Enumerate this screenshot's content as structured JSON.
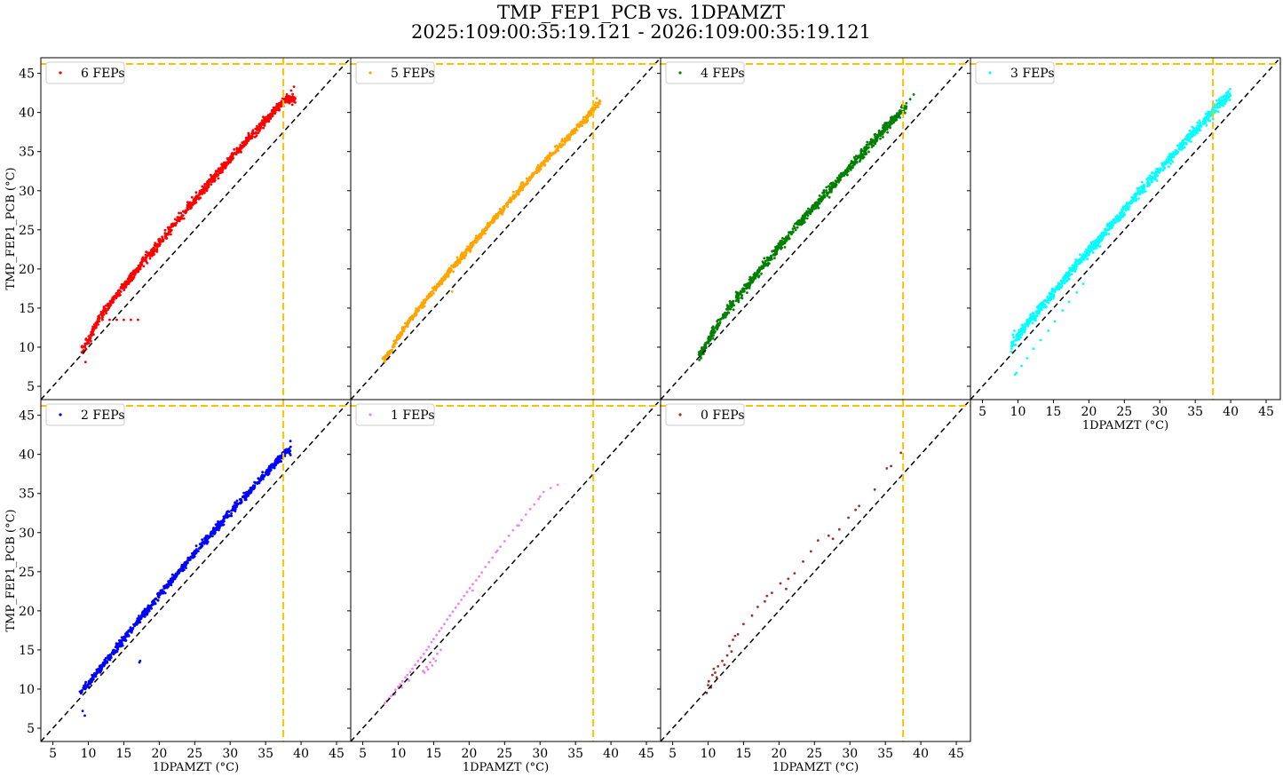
{
  "title": {
    "line1": "TMP_FEP1_PCB vs. 1DPAMZT",
    "line2": "2025:109:00:35:19.121 - 2026:109:00:35:19.121"
  },
  "colors": {
    "reference_line": "#000000",
    "limit_line": "#ffc000"
  },
  "chart_data": [
    {
      "type": "scatter",
      "legend": "6 FEPs",
      "color": "#ff0000",
      "xlabel": "",
      "ylabel": "TMP_FEP1_PCB (°C)",
      "xlim": [
        3.3,
        47
      ],
      "ylim": [
        3.3,
        47
      ],
      "xticks": [
        5,
        10,
        15,
        20,
        25,
        30,
        35,
        40,
        45
      ],
      "yticks": [
        5,
        10,
        15,
        20,
        25,
        30,
        35,
        40,
        45
      ],
      "show_xticklabels": false,
      "show_yticklabels": true,
      "legend_position": "upper left",
      "reference_line": "y = x",
      "limit_lines": {
        "x": 37.5,
        "y": 46.2
      },
      "trend": [
        [
          9.3,
          9.6
        ],
        [
          10.2,
          11
        ],
        [
          11,
          12.8
        ],
        [
          12,
          14.3
        ],
        [
          14,
          16.7
        ],
        [
          16,
          18.9
        ],
        [
          18,
          21.2
        ],
        [
          20,
          23.3
        ],
        [
          22,
          25.5
        ],
        [
          24,
          27.8
        ],
        [
          26,
          29.9
        ],
        [
          28,
          32
        ],
        [
          30,
          34
        ],
        [
          32,
          36
        ],
        [
          34,
          38
        ],
        [
          36,
          40
        ],
        [
          37.8,
          41.6
        ]
      ],
      "spread": 1.2,
      "extra_points": [
        [
          12,
          13.5
        ],
        [
          13,
          13.5
        ],
        [
          14,
          13.5
        ],
        [
          15,
          13.5
        ],
        [
          16,
          13.5
        ],
        [
          17,
          13.5
        ],
        [
          38,
          42.3
        ],
        [
          38.6,
          42.8
        ],
        [
          39,
          43.3
        ],
        [
          9.6,
          8.1
        ],
        [
          37.8,
          41.3
        ]
      ],
      "range": [
        9,
        39.2
      ]
    },
    {
      "type": "scatter",
      "legend": "5 FEPs",
      "color": "#ffa500",
      "xlabel": "",
      "ylabel": "",
      "xlim": [
        3.3,
        47
      ],
      "ylim": [
        3.3,
        47
      ],
      "xticks": [
        5,
        10,
        15,
        20,
        25,
        30,
        35,
        40,
        45
      ],
      "yticks": [
        5,
        10,
        15,
        20,
        25,
        30,
        35,
        40,
        45
      ],
      "show_xticklabels": false,
      "show_yticklabels": false,
      "legend_position": "upper left",
      "reference_line": "y = x",
      "limit_lines": {
        "x": 37.5,
        "y": 46.2
      },
      "trend": [
        [
          8,
          8.5
        ],
        [
          9,
          9.6
        ],
        [
          10,
          11.2
        ],
        [
          11,
          12.7
        ],
        [
          13,
          15
        ],
        [
          15,
          17.3
        ],
        [
          17,
          19.4
        ],
        [
          19,
          21.6
        ],
        [
          21,
          23.7
        ],
        [
          23,
          25.8
        ],
        [
          25,
          27.9
        ],
        [
          27,
          30
        ],
        [
          29,
          32
        ],
        [
          31,
          34
        ],
        [
          33,
          35.9
        ],
        [
          35,
          37.8
        ],
        [
          37,
          39.8
        ],
        [
          38.4,
          41.2
        ]
      ],
      "spread": 0.9,
      "extra_points": [
        [
          17.6,
          17.1
        ],
        [
          38,
          41.8
        ],
        [
          38.4,
          41.5
        ]
      ],
      "range": [
        7.8,
        38.5
      ]
    },
    {
      "type": "scatter",
      "legend": "4 FEPs",
      "color": "#008000",
      "xlabel": "",
      "ylabel": "",
      "xlim": [
        3.3,
        47
      ],
      "ylim": [
        3.3,
        47
      ],
      "xticks": [
        5,
        10,
        15,
        20,
        25,
        30,
        35,
        40,
        45
      ],
      "yticks": [
        5,
        10,
        15,
        20,
        25,
        30,
        35,
        40,
        45
      ],
      "show_xticklabels": false,
      "show_yticklabels": false,
      "legend_position": "upper left",
      "reference_line": "y = x",
      "limit_lines": {
        "x": 37.5,
        "y": 46.2
      },
      "trend": [
        [
          9,
          9.2
        ],
        [
          10,
          10.8
        ],
        [
          11,
          12.4
        ],
        [
          12,
          13.8
        ],
        [
          14,
          16.2
        ],
        [
          16,
          18.4
        ],
        [
          18,
          20.6
        ],
        [
          20,
          22.8
        ],
        [
          22,
          24.9
        ],
        [
          24,
          27
        ],
        [
          26,
          29
        ],
        [
          28,
          31
        ],
        [
          30,
          33
        ],
        [
          32,
          35
        ],
        [
          34,
          37
        ],
        [
          36,
          39
        ],
        [
          37.8,
          40.7
        ]
      ],
      "spread": 1.3,
      "extra_points": [
        [
          38.5,
          41.7
        ],
        [
          39,
          42.3
        ],
        [
          9,
          8.6
        ],
        [
          37.6,
          40.2
        ]
      ],
      "range": [
        8.7,
        38
      ]
    },
    {
      "type": "scatter",
      "legend": "3 FEPs",
      "color": "#00ffff",
      "xlabel": "1DPAMZT (°C)",
      "ylabel": "",
      "xlim": [
        3.3,
        47
      ],
      "ylim": [
        3.3,
        47
      ],
      "xticks": [
        5,
        10,
        15,
        20,
        25,
        30,
        35,
        40,
        45
      ],
      "yticks": [
        5,
        10,
        15,
        20,
        25,
        30,
        35,
        40,
        45
      ],
      "show_xticklabels": true,
      "show_yticklabels": false,
      "legend_position": "upper left",
      "reference_line": "y = x",
      "limit_lines": {
        "x": 37.5,
        "y": 46.2
      },
      "trend": [
        [
          9,
          10
        ],
        [
          10,
          11.5
        ],
        [
          11,
          12.6
        ],
        [
          12,
          13.7
        ],
        [
          14,
          15.9
        ],
        [
          16,
          18.1
        ],
        [
          18,
          20.2
        ],
        [
          20,
          22.3
        ],
        [
          22,
          24.4
        ],
        [
          24,
          26.5
        ],
        [
          26,
          28.6
        ],
        [
          28,
          30.7
        ],
        [
          30,
          32.7
        ],
        [
          32,
          34.7
        ],
        [
          34,
          36.7
        ],
        [
          36,
          38.6
        ],
        [
          38,
          40.6
        ],
        [
          40,
          42.5
        ]
      ],
      "spread": 1.4,
      "extra_points": [
        [
          9.8,
          6.7
        ],
        [
          10.5,
          7.6
        ],
        [
          11.3,
          8.6
        ],
        [
          12.2,
          9.8
        ],
        [
          13.2,
          10.9
        ],
        [
          14.3,
          12.1
        ],
        [
          15.2,
          13.3
        ],
        [
          16.3,
          14.7
        ],
        [
          17.2,
          15.8
        ],
        [
          18.3,
          17
        ],
        [
          19.2,
          18.1
        ],
        [
          9.3,
          11.6
        ],
        [
          9.5,
          12.1
        ],
        [
          9.6,
          6.5
        ]
      ],
      "range": [
        9,
        40
      ]
    },
    {
      "type": "scatter",
      "legend": "2 FEPs",
      "color": "#0000ff",
      "xlabel": "1DPAMZT (°C)",
      "ylabel": "TMP_FEP1_PCB (°C)",
      "xlim": [
        3.3,
        47
      ],
      "ylim": [
        3.3,
        47
      ],
      "xticks": [
        5,
        10,
        15,
        20,
        25,
        30,
        35,
        40,
        45
      ],
      "yticks": [
        5,
        10,
        15,
        20,
        25,
        30,
        35,
        40,
        45
      ],
      "show_xticklabels": true,
      "show_yticklabels": true,
      "legend_position": "upper left",
      "reference_line": "y = x",
      "limit_lines": {
        "x": 37.5,
        "y": 46.2
      },
      "trend": [
        [
          9,
          9.7
        ],
        [
          10,
          10.6
        ],
        [
          11,
          11.8
        ],
        [
          12,
          13
        ],
        [
          14,
          15.3
        ],
        [
          16,
          17.5
        ],
        [
          18,
          19.8
        ],
        [
          20,
          22
        ],
        [
          22,
          24.2
        ],
        [
          24,
          26.3
        ],
        [
          26,
          28.4
        ],
        [
          28,
          30.5
        ],
        [
          30,
          32.5
        ],
        [
          32,
          34.5
        ],
        [
          34,
          36.5
        ],
        [
          36,
          38.5
        ],
        [
          37.8,
          40.4
        ]
      ],
      "spread": 1.0,
      "extra_points": [
        [
          9.2,
          7.2
        ],
        [
          9.5,
          6.6
        ],
        [
          17.2,
          13.4
        ],
        [
          17.3,
          13.6
        ],
        [
          38.5,
          41.7
        ],
        [
          37.2,
          39.1
        ]
      ],
      "range": [
        8.8,
        38.6
      ]
    },
    {
      "type": "scatter",
      "legend": "1 FEPs",
      "color": "#ee82ee",
      "xlabel": "1DPAMZT (°C)",
      "ylabel": "",
      "xlim": [
        3.3,
        47
      ],
      "ylim": [
        3.3,
        47
      ],
      "xticks": [
        5,
        10,
        15,
        20,
        25,
        30,
        35,
        40,
        45
      ],
      "yticks": [
        5,
        10,
        15,
        20,
        25,
        30,
        35,
        40,
        45
      ],
      "show_xticklabels": true,
      "show_yticklabels": false,
      "legend_position": "upper left",
      "reference_line": "y = x",
      "limit_lines": {
        "x": 37.5,
        "y": 46.2
      },
      "points": [
        [
          8.1,
          8.2
        ],
        [
          8.4,
          8.5
        ],
        [
          8.7,
          8.8
        ],
        [
          9,
          9.1
        ],
        [
          9.3,
          9.4
        ],
        [
          9.6,
          9.9
        ],
        [
          10,
          10.3
        ],
        [
          10.3,
          10.6
        ],
        [
          10.6,
          11
        ],
        [
          11,
          11.5
        ],
        [
          11.3,
          11.8
        ],
        [
          11.7,
          12.2
        ],
        [
          12,
          12.6
        ],
        [
          12.4,
          13.1
        ],
        [
          12.8,
          13.6
        ],
        [
          13.2,
          14
        ],
        [
          13.6,
          14.5
        ],
        [
          14,
          15
        ],
        [
          14.3,
          15.4
        ],
        [
          14.7,
          16
        ],
        [
          15,
          16.4
        ],
        [
          15.4,
          16.9
        ],
        [
          15.8,
          17.4
        ],
        [
          16.1,
          17.8
        ],
        [
          16.5,
          18.3
        ],
        [
          16.9,
          18.9
        ],
        [
          17.3,
          19.4
        ],
        [
          17.7,
          19.9
        ],
        [
          18.1,
          20.4
        ],
        [
          18.5,
          20.9
        ],
        [
          18.9,
          21.4
        ],
        [
          19.3,
          21.9
        ],
        [
          19.7,
          22.4
        ],
        [
          20.1,
          22.9
        ],
        [
          20.5,
          23.4
        ],
        [
          21,
          23.9
        ],
        [
          21.4,
          24.4
        ],
        [
          21.8,
          24.9
        ],
        [
          22.3,
          25.6
        ],
        [
          22.8,
          26.2
        ],
        [
          23.3,
          26.8
        ],
        [
          23.8,
          27.5
        ],
        [
          24.4,
          28.2
        ],
        [
          25,
          28.9
        ],
        [
          25.6,
          29.6
        ],
        [
          26.2,
          30.3
        ],
        [
          26.8,
          30.9
        ],
        [
          27.4,
          31.6
        ],
        [
          28,
          32.3
        ],
        [
          28.6,
          33
        ],
        [
          29.2,
          33.6
        ],
        [
          29.8,
          34.3
        ],
        [
          30.5,
          35.2
        ],
        [
          31.5,
          35.7
        ],
        [
          32.5,
          36.1
        ],
        [
          13.5,
          12.3
        ],
        [
          14,
          12.8
        ],
        [
          14.5,
          13.4
        ],
        [
          15,
          13.9
        ],
        [
          15.5,
          14.5
        ],
        [
          16,
          15
        ],
        [
          13.7,
          12.1
        ],
        [
          14.2,
          12.5
        ],
        [
          14.8,
          13
        ],
        [
          15.3,
          13.6
        ],
        [
          9.5,
          9.3
        ],
        [
          10.5,
          10.2
        ],
        [
          11.5,
          11.1
        ],
        [
          20.5,
          22.6
        ],
        [
          24,
          27.7
        ],
        [
          27,
          30.9
        ],
        [
          30,
          34.6
        ]
      ]
    },
    {
      "type": "scatter",
      "legend": "0 FEPs",
      "color": "#a52a2a",
      "xlabel": "1DPAMZT (°C)",
      "ylabel": "",
      "xlim": [
        3.3,
        47
      ],
      "ylim": [
        3.3,
        47
      ],
      "xticks": [
        5,
        10,
        15,
        20,
        25,
        30,
        35,
        40,
        45
      ],
      "yticks": [
        5,
        10,
        15,
        20,
        25,
        30,
        35,
        40,
        45
      ],
      "show_xticklabels": true,
      "show_yticklabels": false,
      "legend_position": "upper left",
      "reference_line": "y = x",
      "limit_lines": {
        "x": 37.5,
        "y": 46.2
      },
      "points": [
        [
          9.8,
          9.5
        ],
        [
          10,
          10.5
        ],
        [
          10.1,
          11
        ],
        [
          10.4,
          10.2
        ],
        [
          10.6,
          11.8
        ],
        [
          10.8,
          12.6
        ],
        [
          11,
          12.1
        ],
        [
          11.2,
          11.5
        ],
        [
          11.4,
          12.9
        ],
        [
          12,
          13.6
        ],
        [
          12.3,
          13.1
        ],
        [
          12.7,
          14.3
        ],
        [
          13,
          15.5
        ],
        [
          13.3,
          14.8
        ],
        [
          13.5,
          16.3
        ],
        [
          13.8,
          16.8
        ],
        [
          14.2,
          17
        ],
        [
          15,
          18.3
        ],
        [
          16.2,
          19.4
        ],
        [
          17,
          20.5
        ],
        [
          18,
          21.2
        ],
        [
          18.3,
          21.9
        ],
        [
          19,
          22.3
        ],
        [
          20.2,
          23.5
        ],
        [
          21,
          22.8
        ],
        [
          21.3,
          24.1
        ],
        [
          22.2,
          24.8
        ],
        [
          23.4,
          26.3
        ],
        [
          24.5,
          27.6
        ],
        [
          25.5,
          29
        ],
        [
          27,
          29.6
        ],
        [
          27.6,
          29.2
        ],
        [
          28.5,
          30.4
        ],
        [
          29.8,
          31.9
        ],
        [
          30.8,
          32.9
        ],
        [
          31.3,
          33.4
        ],
        [
          33.5,
          35.5
        ],
        [
          35.2,
          38.2
        ],
        [
          35.8,
          38.5
        ],
        [
          37.2,
          40.2
        ]
      ]
    }
  ]
}
